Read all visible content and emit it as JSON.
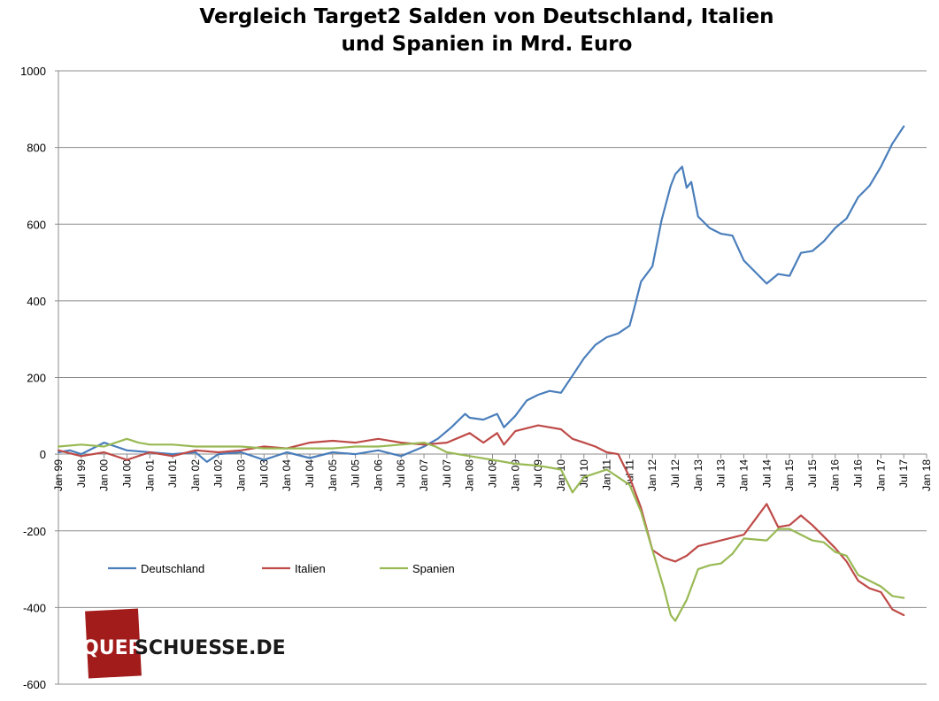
{
  "chart_data": {
    "type": "line",
    "title_line1": "Vergleich Target2 Salden von Deutschland, Italien",
    "title_line2": "und Spanien in Mrd. Euro",
    "ylim": [
      -600,
      1000
    ],
    "yticks": [
      1000,
      800,
      600,
      400,
      200,
      0,
      -200,
      -400,
      -600
    ],
    "xlim": [
      1999.0,
      2018.0
    ],
    "xticks": [
      {
        "label": "Jan 99",
        "x": 1999.0
      },
      {
        "label": "Jul 99",
        "x": 1999.5
      },
      {
        "label": "Jan 00",
        "x": 2000.0
      },
      {
        "label": "Jul 00",
        "x": 2000.5
      },
      {
        "label": "Jan 01",
        "x": 2001.0
      },
      {
        "label": "Jul 01",
        "x": 2001.5
      },
      {
        "label": "Jan 02",
        "x": 2002.0
      },
      {
        "label": "Jul 02",
        "x": 2002.5
      },
      {
        "label": "Jan 03",
        "x": 2003.0
      },
      {
        "label": "Jul 03",
        "x": 2003.5
      },
      {
        "label": "Jan 04",
        "x": 2004.0
      },
      {
        "label": "Jul 04",
        "x": 2004.5
      },
      {
        "label": "Jan 05",
        "x": 2005.0
      },
      {
        "label": "Jul 05",
        "x": 2005.5
      },
      {
        "label": "Jan 06",
        "x": 2006.0
      },
      {
        "label": "Jul 06",
        "x": 2006.5
      },
      {
        "label": "Jan 07",
        "x": 2007.0
      },
      {
        "label": "Jul 07",
        "x": 2007.5
      },
      {
        "label": "Jan 08",
        "x": 2008.0
      },
      {
        "label": "Jul 08",
        "x": 2008.5
      },
      {
        "label": "Jan 09",
        "x": 2009.0
      },
      {
        "label": "Jul 09",
        "x": 2009.5
      },
      {
        "label": "Jan 10",
        "x": 2010.0
      },
      {
        "label": "Jul 10",
        "x": 2010.5
      },
      {
        "label": "Jan 11",
        "x": 2011.0
      },
      {
        "label": "Jul 11",
        "x": 2011.5
      },
      {
        "label": "Jan 12",
        "x": 2012.0
      },
      {
        "label": "Jul 12",
        "x": 2012.5
      },
      {
        "label": "Jan 13",
        "x": 2013.0
      },
      {
        "label": "Jul 13",
        "x": 2013.5
      },
      {
        "label": "Jan 14",
        "x": 2014.0
      },
      {
        "label": "Jul 14",
        "x": 2014.5
      },
      {
        "label": "Jan 15",
        "x": 2015.0
      },
      {
        "label": "Jul 15",
        "x": 2015.5
      },
      {
        "label": "Jan 16",
        "x": 2016.0
      },
      {
        "label": "Jul 16",
        "x": 2016.5
      },
      {
        "label": "Jan 17",
        "x": 2017.0
      },
      {
        "label": "Jul 17",
        "x": 2017.5
      },
      {
        "label": "Jan 18",
        "x": 2018.0
      }
    ],
    "grid": "horizontal",
    "legend_position": "lower-left",
    "series": [
      {
        "name": "Deutschland",
        "color": "#4a7ebb",
        "points": [
          [
            1999.0,
            5
          ],
          [
            1999.25,
            10
          ],
          [
            1999.5,
            0
          ],
          [
            1999.75,
            15
          ],
          [
            2000.0,
            30
          ],
          [
            2000.5,
            10
          ],
          [
            2001.0,
            5
          ],
          [
            2001.5,
            0
          ],
          [
            2002.0,
            5
          ],
          [
            2002.25,
            -20
          ],
          [
            2002.5,
            0
          ],
          [
            2003.0,
            5
          ],
          [
            2003.5,
            -15
          ],
          [
            2004.0,
            5
          ],
          [
            2004.5,
            -10
          ],
          [
            2005.0,
            5
          ],
          [
            2005.5,
            0
          ],
          [
            2006.0,
            10
          ],
          [
            2006.5,
            -5
          ],
          [
            2007.0,
            20
          ],
          [
            2007.3,
            40
          ],
          [
            2007.6,
            70
          ],
          [
            2007.9,
            105
          ],
          [
            2008.0,
            95
          ],
          [
            2008.3,
            90
          ],
          [
            2008.6,
            105
          ],
          [
            2008.75,
            70
          ],
          [
            2009.0,
            100
          ],
          [
            2009.25,
            140
          ],
          [
            2009.5,
            155
          ],
          [
            2009.75,
            165
          ],
          [
            2010.0,
            160
          ],
          [
            2010.25,
            205
          ],
          [
            2010.5,
            250
          ],
          [
            2010.75,
            285
          ],
          [
            2011.0,
            305
          ],
          [
            2011.25,
            315
          ],
          [
            2011.5,
            335
          ],
          [
            2011.6,
            380
          ],
          [
            2011.75,
            450
          ],
          [
            2012.0,
            490
          ],
          [
            2012.2,
            610
          ],
          [
            2012.4,
            700
          ],
          [
            2012.5,
            730
          ],
          [
            2012.65,
            750
          ],
          [
            2012.75,
            695
          ],
          [
            2012.85,
            710
          ],
          [
            2013.0,
            620
          ],
          [
            2013.25,
            590
          ],
          [
            2013.5,
            575
          ],
          [
            2013.75,
            570
          ],
          [
            2014.0,
            505
          ],
          [
            2014.25,
            475
          ],
          [
            2014.5,
            445
          ],
          [
            2014.75,
            470
          ],
          [
            2015.0,
            465
          ],
          [
            2015.25,
            525
          ],
          [
            2015.5,
            530
          ],
          [
            2015.75,
            555
          ],
          [
            2016.0,
            590
          ],
          [
            2016.25,
            615
          ],
          [
            2016.5,
            670
          ],
          [
            2016.75,
            700
          ],
          [
            2017.0,
            750
          ],
          [
            2017.25,
            810
          ],
          [
            2017.5,
            855
          ]
        ]
      },
      {
        "name": "Italien",
        "color": "#be4b48",
        "points": [
          [
            1999.0,
            10
          ],
          [
            1999.5,
            -5
          ],
          [
            2000.0,
            5
          ],
          [
            2000.5,
            -15
          ],
          [
            2001.0,
            5
          ],
          [
            2001.5,
            -5
          ],
          [
            2002.0,
            10
          ],
          [
            2002.5,
            5
          ],
          [
            2003.0,
            10
          ],
          [
            2003.5,
            20
          ],
          [
            2004.0,
            15
          ],
          [
            2004.5,
            30
          ],
          [
            2005.0,
            35
          ],
          [
            2005.5,
            30
          ],
          [
            2006.0,
            40
          ],
          [
            2006.5,
            30
          ],
          [
            2007.0,
            25
          ],
          [
            2007.5,
            30
          ],
          [
            2008.0,
            55
          ],
          [
            2008.3,
            30
          ],
          [
            2008.6,
            55
          ],
          [
            2008.75,
            25
          ],
          [
            2009.0,
            60
          ],
          [
            2009.5,
            75
          ],
          [
            2010.0,
            65
          ],
          [
            2010.25,
            40
          ],
          [
            2010.5,
            30
          ],
          [
            2010.75,
            20
          ],
          [
            2011.0,
            5
          ],
          [
            2011.25,
            0
          ],
          [
            2011.5,
            -60
          ],
          [
            2011.75,
            -140
          ],
          [
            2012.0,
            -250
          ],
          [
            2012.25,
            -270
          ],
          [
            2012.5,
            -280
          ],
          [
            2012.75,
            -265
          ],
          [
            2013.0,
            -240
          ],
          [
            2013.5,
            -225
          ],
          [
            2014.0,
            -210
          ],
          [
            2014.25,
            -170
          ],
          [
            2014.5,
            -130
          ],
          [
            2014.75,
            -190
          ],
          [
            2015.0,
            -185
          ],
          [
            2015.25,
            -160
          ],
          [
            2015.5,
            -185
          ],
          [
            2015.75,
            -215
          ],
          [
            2016.0,
            -245
          ],
          [
            2016.25,
            -280
          ],
          [
            2016.5,
            -330
          ],
          [
            2016.75,
            -350
          ],
          [
            2017.0,
            -360
          ],
          [
            2017.25,
            -405
          ],
          [
            2017.5,
            -420
          ]
        ]
      },
      {
        "name": "Spanien",
        "color": "#98b954",
        "points": [
          [
            1999.0,
            20
          ],
          [
            1999.5,
            25
          ],
          [
            2000.0,
            20
          ],
          [
            2000.5,
            40
          ],
          [
            2000.75,
            30
          ],
          [
            2001.0,
            25
          ],
          [
            2001.5,
            25
          ],
          [
            2002.0,
            20
          ],
          [
            2002.5,
            20
          ],
          [
            2003.0,
            20
          ],
          [
            2003.5,
            15
          ],
          [
            2004.0,
            15
          ],
          [
            2004.5,
            15
          ],
          [
            2005.0,
            15
          ],
          [
            2005.5,
            20
          ],
          [
            2006.0,
            20
          ],
          [
            2006.5,
            25
          ],
          [
            2007.0,
            30
          ],
          [
            2007.25,
            20
          ],
          [
            2007.5,
            5
          ],
          [
            2008.0,
            -5
          ],
          [
            2008.5,
            -15
          ],
          [
            2009.0,
            -25
          ],
          [
            2009.5,
            -30
          ],
          [
            2010.0,
            -40
          ],
          [
            2010.25,
            -100
          ],
          [
            2010.5,
            -60
          ],
          [
            2011.0,
            -40
          ],
          [
            2011.5,
            -80
          ],
          [
            2011.75,
            -150
          ],
          [
            2012.0,
            -250
          ],
          [
            2012.25,
            -350
          ],
          [
            2012.4,
            -420
          ],
          [
            2012.5,
            -435
          ],
          [
            2012.75,
            -380
          ],
          [
            2013.0,
            -300
          ],
          [
            2013.25,
            -290
          ],
          [
            2013.5,
            -285
          ],
          [
            2013.75,
            -260
          ],
          [
            2014.0,
            -220
          ],
          [
            2014.5,
            -225
          ],
          [
            2014.75,
            -195
          ],
          [
            2015.0,
            -195
          ],
          [
            2015.5,
            -225
          ],
          [
            2015.75,
            -230
          ],
          [
            2016.0,
            -255
          ],
          [
            2016.25,
            -265
          ],
          [
            2016.5,
            -315
          ],
          [
            2016.75,
            -330
          ],
          [
            2017.0,
            -345
          ],
          [
            2017.25,
            -370
          ],
          [
            2017.5,
            -375
          ]
        ]
      }
    ]
  },
  "watermark": {
    "part1": "QUER",
    "part2": "SCHUESSE.DE",
    "box_color": "#a31c1c"
  }
}
